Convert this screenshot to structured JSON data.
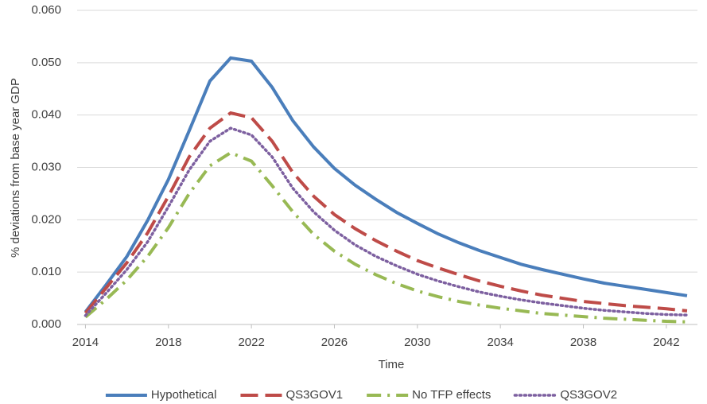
{
  "chart_data": {
    "type": "line",
    "y_label": "% deviations from base year GDP",
    "x_label": "Time",
    "x": [
      2014,
      2015,
      2016,
      2017,
      2018,
      2019,
      2020,
      2021,
      2022,
      2023,
      2024,
      2025,
      2026,
      2027,
      2028,
      2029,
      2030,
      2031,
      2032,
      2033,
      2034,
      2035,
      2036,
      2037,
      2038,
      2039,
      2040,
      2041,
      2042,
      2043
    ],
    "xlim": [
      2013.6,
      2043.5
    ],
    "xticks": [
      2014,
      2018,
      2022,
      2026,
      2030,
      2034,
      2038,
      2042
    ],
    "ylim": [
      0,
      0.06
    ],
    "yticks": [
      {
        "value": 0,
        "label": "0.000"
      },
      {
        "value": 0.01,
        "label": "0.010"
      },
      {
        "value": 0.02,
        "label": "0.020"
      },
      {
        "value": 0.03,
        "label": "0.030"
      },
      {
        "value": 0.04,
        "label": "0.040"
      },
      {
        "value": 0.05,
        "label": "0.050"
      },
      {
        "value": 0.06,
        "label": "0.060"
      }
    ],
    "grid": true,
    "legend": "bottom",
    "series": [
      {
        "name": "Hypothetical",
        "color": "#4a7ebb",
        "dash": "solid",
        "values": [
          0.0024,
          0.0076,
          0.013,
          0.0199,
          0.0277,
          0.037,
          0.0465,
          0.0509,
          0.0503,
          0.0453,
          0.0389,
          0.0339,
          0.0298,
          0.0266,
          0.0239,
          0.0214,
          0.0193,
          0.0173,
          0.0156,
          0.0141,
          0.0128,
          0.0115,
          0.0105,
          0.0096,
          0.0087,
          0.0079,
          0.0073,
          0.0067,
          0.0061,
          0.0055
        ]
      },
      {
        "name": "QS3GOV1",
        "color": "#be4b48",
        "dash": "dashed",
        "values": [
          0.0022,
          0.007,
          0.0118,
          0.0175,
          0.0245,
          0.032,
          0.0375,
          0.0404,
          0.0395,
          0.035,
          0.029,
          0.0245,
          0.021,
          0.0183,
          0.016,
          0.014,
          0.0122,
          0.0108,
          0.0095,
          0.0083,
          0.0073,
          0.0064,
          0.0056,
          0.005,
          0.0044,
          0.004,
          0.0036,
          0.0033,
          0.003,
          0.0026
        ]
      },
      {
        "name": "No TFP effects",
        "color": "#98b954",
        "dash": "dashdot",
        "values": [
          0.0014,
          0.0048,
          0.0085,
          0.013,
          0.0185,
          0.025,
          0.0303,
          0.0328,
          0.0312,
          0.0265,
          0.0215,
          0.0172,
          0.014,
          0.0115,
          0.0095,
          0.0078,
          0.0064,
          0.0053,
          0.0044,
          0.0037,
          0.0031,
          0.0026,
          0.0021,
          0.0018,
          0.0015,
          0.0012,
          0.001,
          0.0008,
          0.0006,
          0.0005
        ]
      },
      {
        "name": "QS3GOV2",
        "color": "#7d60a0",
        "dash": "dotted",
        "values": [
          0.0017,
          0.006,
          0.0105,
          0.0158,
          0.0225,
          0.0295,
          0.035,
          0.0375,
          0.0362,
          0.032,
          0.026,
          0.0215,
          0.018,
          0.0152,
          0.013,
          0.0112,
          0.0096,
          0.0083,
          0.0072,
          0.0062,
          0.0054,
          0.0047,
          0.0041,
          0.0036,
          0.0031,
          0.0027,
          0.0024,
          0.0021,
          0.0019,
          0.0018
        ]
      }
    ]
  }
}
